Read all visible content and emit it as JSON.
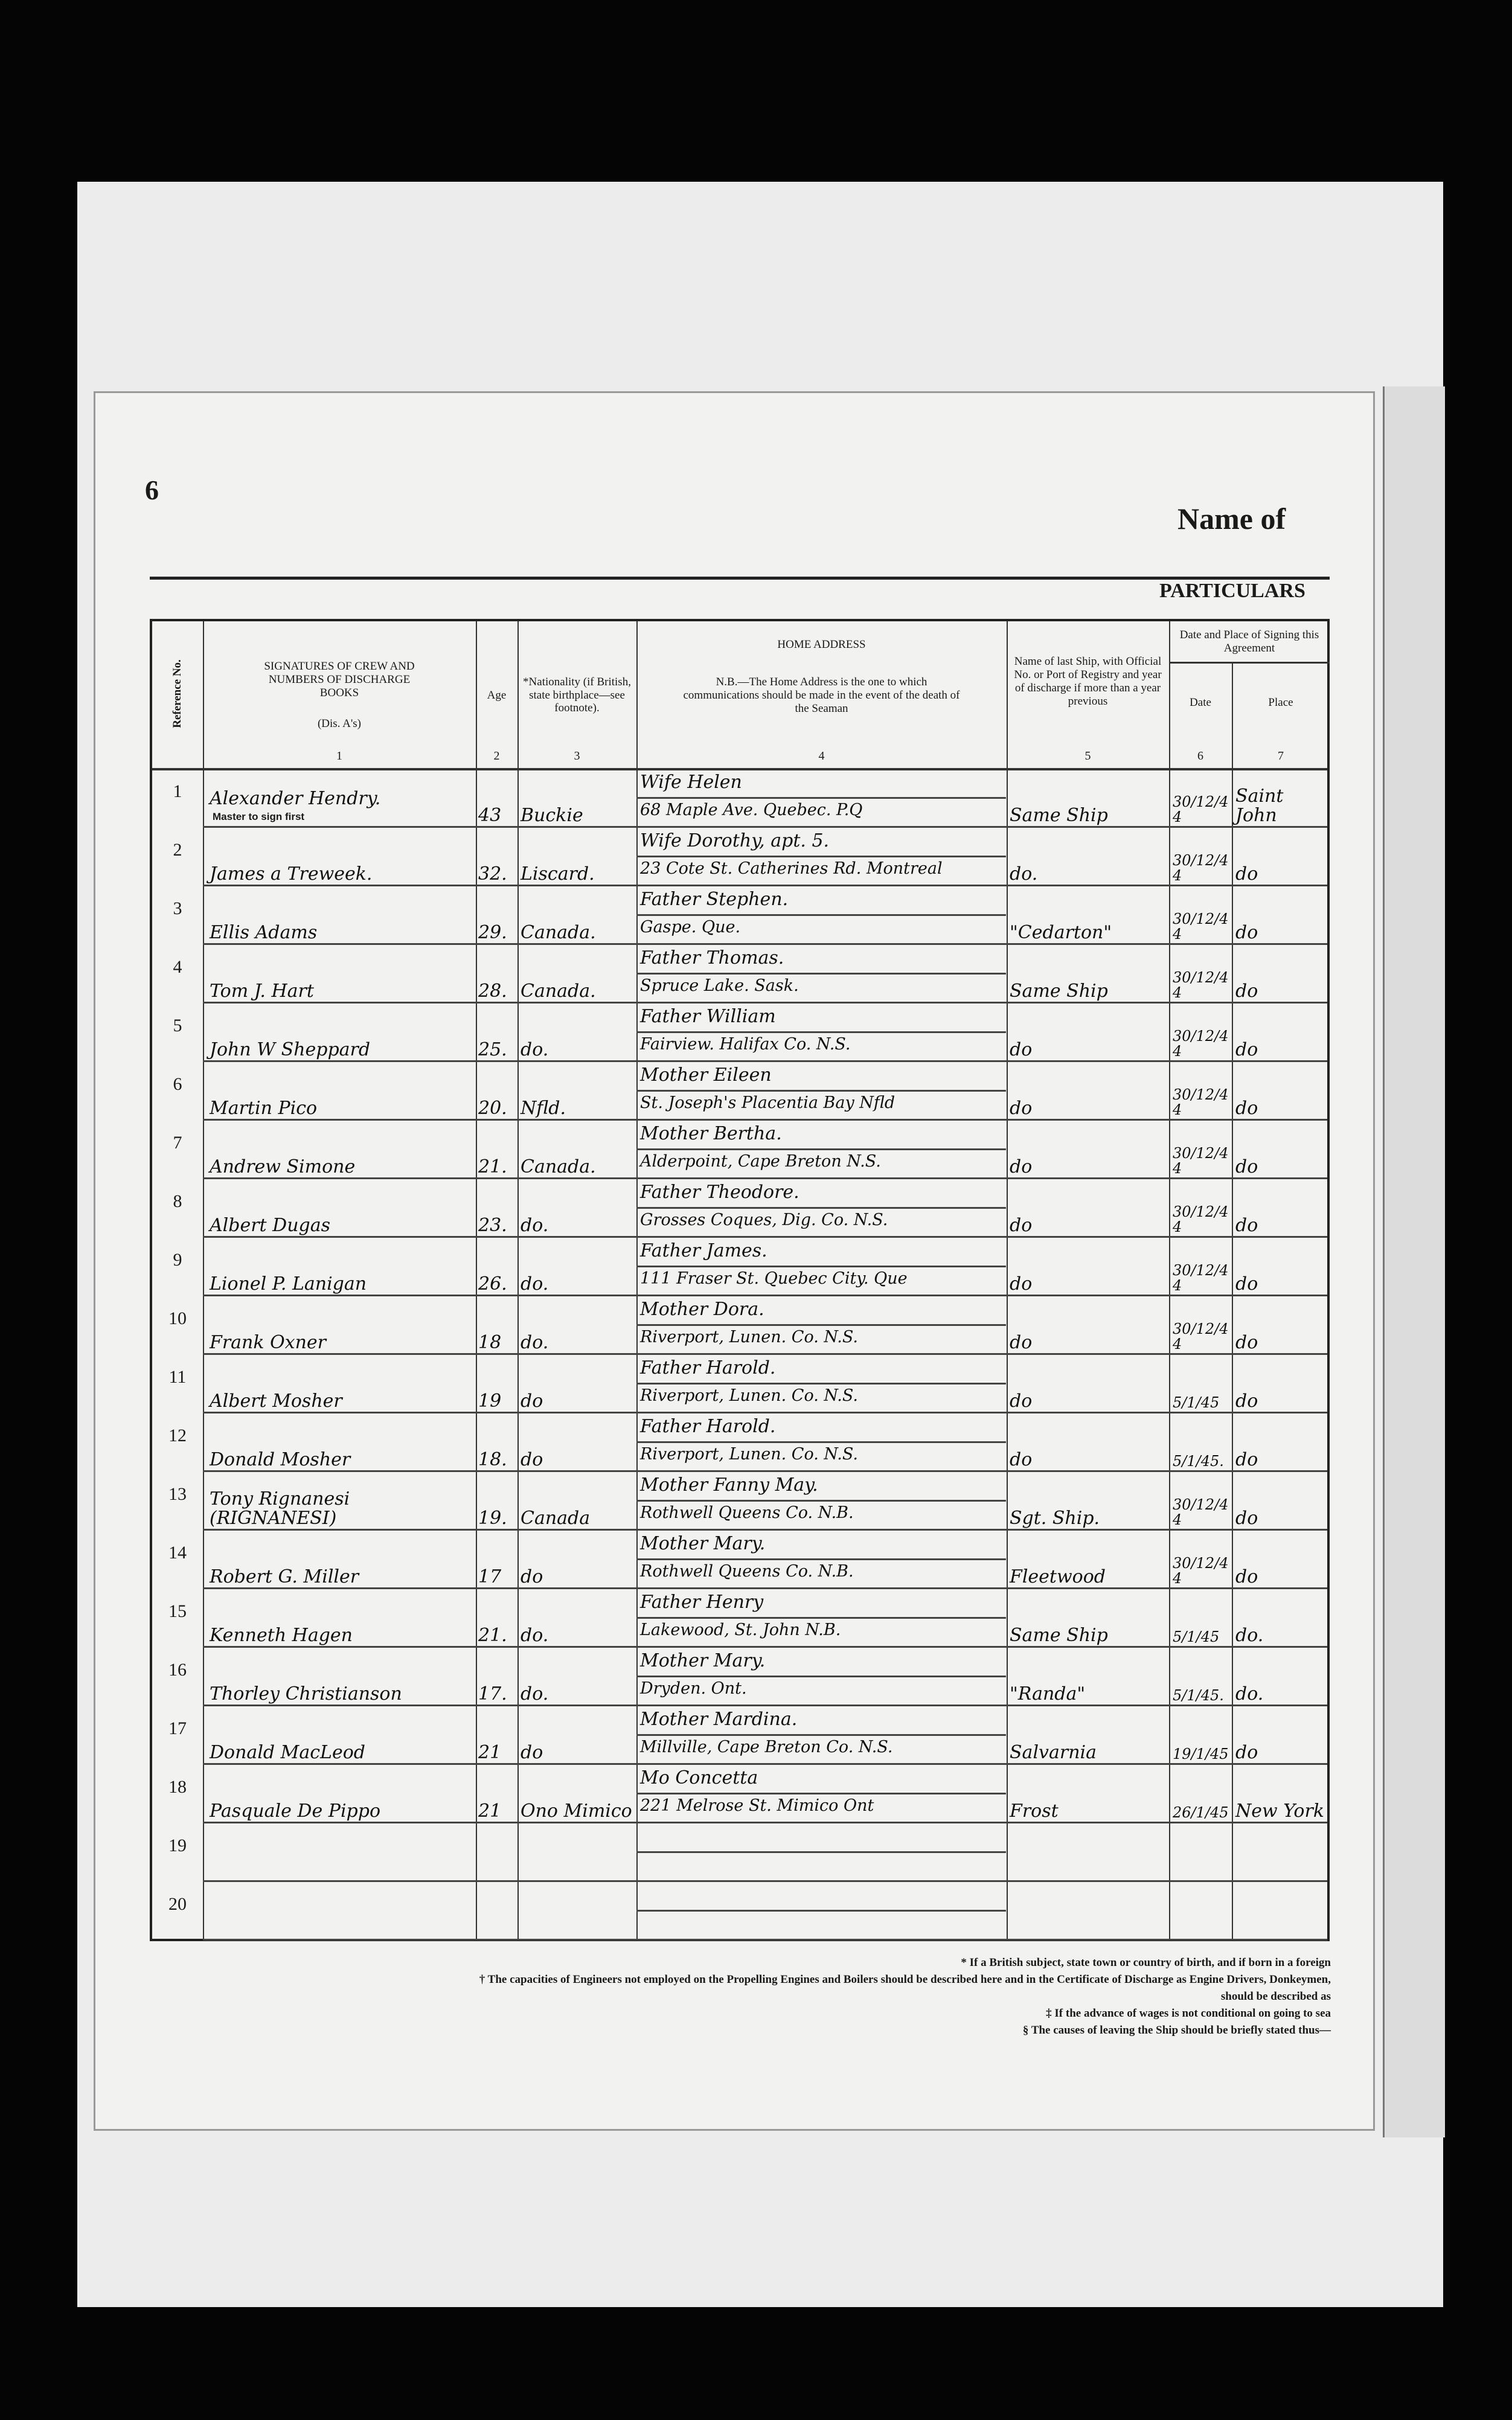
{
  "page_number": "6",
  "heading": "Name of",
  "section": "PARTICULARS",
  "columns": {
    "ref": {
      "label": "Reference No."
    },
    "signature": {
      "label": "SIGNATURES OF CREW AND NUMBERS OF DISCHARGE BOOKS",
      "sub": "(Dis. A's)",
      "num": "1"
    },
    "age": {
      "label": "Age",
      "num": "2"
    },
    "nationality": {
      "label": "*Nationality (if British, state birthplace—see footnote).",
      "num": "3"
    },
    "address": {
      "label": "HOME ADDRESS",
      "note": "N.B.—The Home Address is the one to which communications should be made in the event of the death of the Seaman",
      "num": "4"
    },
    "last_ship": {
      "label": "Name of last Ship, with Official No. or Port of Registry and year of discharge if more than a year previous",
      "num": "5"
    },
    "signing": {
      "label": "Date and Place of Signing this Agreement"
    },
    "date": {
      "label": "Date",
      "num": "6"
    },
    "place": {
      "label": "Place",
      "num": "7"
    }
  },
  "master_note": "Master to sign first",
  "rows": [
    {
      "ref": "1",
      "name": "Alexander Hendry.",
      "age": "43",
      "nat": "Buckie",
      "rel": "Wife Helen",
      "addr": "68 Maple Ave. Quebec. P.Q",
      "ship": "Same Ship",
      "date": "30/12/44",
      "place": "Saint John"
    },
    {
      "ref": "2",
      "name": "James a Treweek.",
      "age": "32.",
      "nat": "Liscard.",
      "rel": "Wife Dorothy, apt. 5.",
      "addr": "23 Cote St. Catherines Rd. Montreal",
      "ship": "do.",
      "date": "30/12/44",
      "place": "do"
    },
    {
      "ref": "3",
      "name": "Ellis Adams",
      "age": "29.",
      "nat": "Canada.",
      "rel": "Father Stephen.",
      "addr": "Gaspe. Que.",
      "ship": "\"Cedarton\"",
      "date": "30/12/44",
      "place": "do"
    },
    {
      "ref": "4",
      "name": "Tom J. Hart",
      "age": "28.",
      "nat": "Canada.",
      "rel": "Father Thomas.",
      "addr": "Spruce Lake. Sask.",
      "ship": "Same Ship",
      "date": "30/12/44",
      "place": "do"
    },
    {
      "ref": "5",
      "name": "John W Sheppard",
      "age": "25.",
      "nat": "do.",
      "rel": "Father William",
      "addr": "Fairview. Halifax Co. N.S.",
      "ship": "do",
      "date": "30/12/44",
      "place": "do"
    },
    {
      "ref": "6",
      "name": "Martin Pico",
      "age": "20.",
      "nat": "Nfld.",
      "rel": "Mother Eileen",
      "addr": "St. Joseph's Placentia Bay Nfld",
      "ship": "do",
      "date": "30/12/44",
      "place": "do"
    },
    {
      "ref": "7",
      "name": "Andrew Simone",
      "age": "21.",
      "nat": "Canada.",
      "rel": "Mother Bertha.",
      "addr": "Alderpoint, Cape Breton N.S.",
      "ship": "do",
      "date": "30/12/44",
      "place": "do"
    },
    {
      "ref": "8",
      "name": "Albert Dugas",
      "age": "23.",
      "nat": "do.",
      "rel": "Father Theodore.",
      "addr": "Grosses Coques, Dig. Co. N.S.",
      "ship": "do",
      "date": "30/12/44",
      "place": "do"
    },
    {
      "ref": "9",
      "name": "Lionel P. Lanigan",
      "age": "26.",
      "nat": "do.",
      "rel": "Father James.",
      "addr": "111 Fraser St. Quebec City. Que",
      "ship": "do",
      "date": "30/12/44",
      "place": "do"
    },
    {
      "ref": "10",
      "name": "Frank Oxner",
      "age": "18",
      "nat": "do.",
      "rel": "Mother Dora.",
      "addr": "Riverport, Lunen. Co. N.S.",
      "ship": "do",
      "date": "30/12/44",
      "place": "do"
    },
    {
      "ref": "11",
      "name": "Albert Mosher",
      "age": "19",
      "nat": "do",
      "rel": "Father Harold.",
      "addr": "Riverport, Lunen. Co. N.S.",
      "ship": "do",
      "date": "5/1/45",
      "place": "do"
    },
    {
      "ref": "12",
      "name": "Donald Mosher",
      "age": "18.",
      "nat": "do",
      "rel": "Father Harold.",
      "addr": "Riverport, Lunen. Co. N.S.",
      "ship": "do",
      "date": "5/1/45.",
      "place": "do"
    },
    {
      "ref": "13",
      "name": "Tony Rignanesi (RIGNANESI)",
      "age": "19.",
      "nat": "Canada",
      "rel": "Mother Fanny May.",
      "addr": "Rothwell Queens Co. N.B.",
      "ship": "Sgt. Ship.",
      "date": "30/12/44",
      "place": "do"
    },
    {
      "ref": "14",
      "name": "Robert G. Miller",
      "age": "17",
      "nat": "do",
      "rel": "Mother Mary.",
      "addr": "Rothwell Queens Co. N.B.",
      "ship": "Fleetwood",
      "date": "30/12/44",
      "place": "do"
    },
    {
      "ref": "15",
      "name": "Kenneth Hagen",
      "age": "21.",
      "nat": "do.",
      "rel": "Father Henry",
      "addr": "Lakewood, St. John N.B.",
      "ship": "Same Ship",
      "date": "5/1/45",
      "place": "do."
    },
    {
      "ref": "16",
      "name": "Thorley Christianson",
      "age": "17.",
      "nat": "do.",
      "rel": "Mother Mary.",
      "addr": "Dryden. Ont.",
      "ship": "\"Randa\"",
      "date": "5/1/45.",
      "place": "do."
    },
    {
      "ref": "17",
      "name": "Donald MacLeod",
      "age": "21",
      "nat": "do",
      "rel": "Mother Mardina.",
      "addr": "Millville, Cape Breton Co. N.S.",
      "ship": "Salvarnia",
      "date": "19/1/45",
      "place": "do"
    },
    {
      "ref": "18",
      "name": "Pasquale De Pippo",
      "age": "21",
      "nat": "Ono Mimico",
      "rel": "Mo Concetta",
      "addr": "221 Melrose St. Mimico Ont",
      "ship": "Frost",
      "date": "26/1/45",
      "place": "New York"
    },
    {
      "ref": "19",
      "name": "",
      "age": "",
      "nat": "",
      "rel": "",
      "addr": "",
      "ship": "",
      "date": "",
      "place": ""
    },
    {
      "ref": "20",
      "name": "",
      "age": "",
      "nat": "",
      "rel": "",
      "addr": "",
      "ship": "",
      "date": "",
      "place": ""
    }
  ],
  "footnotes": [
    "* If a British subject, state town or country of birth, and if born in a foreign",
    "† The capacities of Engineers not employed on the Propelling Engines and Boilers should be described here and in the Certificate of Discharge as Engine Drivers, Donkeymen,",
    "should be described as",
    "‡ If the advance of wages is not conditional on going to sea",
    "§ The causes of leaving the Ship should be briefly stated thus—"
  ]
}
